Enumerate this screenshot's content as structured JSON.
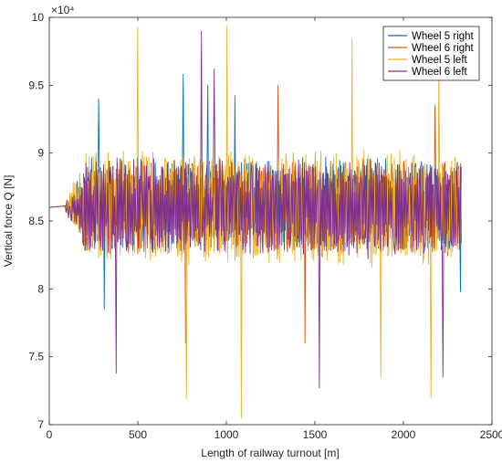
{
  "chart_data": {
    "type": "line",
    "xlabel": "Length of railway turnout [m]",
    "ylabel": "Vertical force Q [N]",
    "y_exponent_label": "×10⁴",
    "xlim": [
      0,
      2500
    ],
    "ylim": [
      7,
      10
    ],
    "x_ticks": [
      0,
      500,
      1000,
      1500,
      2000,
      2500
    ],
    "x_tick_labels": [
      "0",
      "500",
      "1000",
      "1500",
      "2000",
      "2500"
    ],
    "y_ticks": [
      7,
      7.5,
      8,
      8.5,
      9,
      9.5,
      10
    ],
    "y_tick_labels": [
      "7",
      "7.5",
      "8",
      "8.5",
      "9",
      "9.5",
      "10"
    ],
    "grid": false,
    "legend_position": "top-right",
    "x_start": 0,
    "x_flat_end": 90,
    "x_end": 2330,
    "baseline_value": 8.6,
    "series": [
      {
        "name": "Wheel 5 right",
        "color": "#0072bd",
        "mean": 8.62,
        "amplitude": 0.32,
        "seed": 11,
        "peaks": [
          {
            "x": 280,
            "y": 9.4
          },
          {
            "x": 755,
            "y": 9.58
          },
          {
            "x": 895,
            "y": 9.5
          },
          {
            "x": 1050,
            "y": 9.42
          }
        ],
        "troughs": [
          {
            "x": 310,
            "y": 7.85
          },
          {
            "x": 2320,
            "y": 7.98
          }
        ]
      },
      {
        "name": "Wheel 6 right",
        "color": "#d95319",
        "mean": 8.6,
        "amplitude": 0.33,
        "seed": 23,
        "peaks": [
          {
            "x": 1290,
            "y": 9.5
          },
          {
            "x": 2180,
            "y": 9.35
          }
        ],
        "troughs": [
          {
            "x": 770,
            "y": 7.6
          },
          {
            "x": 1445,
            "y": 7.6
          }
        ]
      },
      {
        "name": "Wheel 5 left",
        "color": "#edb120",
        "mean": 8.6,
        "amplitude": 0.4,
        "seed": 37,
        "peaks": [
          {
            "x": 500,
            "y": 9.93
          },
          {
            "x": 1005,
            "y": 9.94
          },
          {
            "x": 1710,
            "y": 9.84
          },
          {
            "x": 2200,
            "y": 9.74
          }
        ],
        "troughs": [
          {
            "x": 775,
            "y": 7.19
          },
          {
            "x": 1085,
            "y": 7.05
          },
          {
            "x": 2155,
            "y": 7.2
          },
          {
            "x": 1870,
            "y": 7.35
          }
        ]
      },
      {
        "name": "Wheel 6 left",
        "color": "#7e2f8e",
        "mean": 8.6,
        "amplitude": 0.34,
        "seed": 53,
        "peaks": [
          {
            "x": 860,
            "y": 9.9
          },
          {
            "x": 930,
            "y": 9.62
          }
        ],
        "troughs": [
          {
            "x": 380,
            "y": 7.38
          },
          {
            "x": 1525,
            "y": 7.27
          },
          {
            "x": 2225,
            "y": 7.35
          }
        ]
      }
    ]
  }
}
